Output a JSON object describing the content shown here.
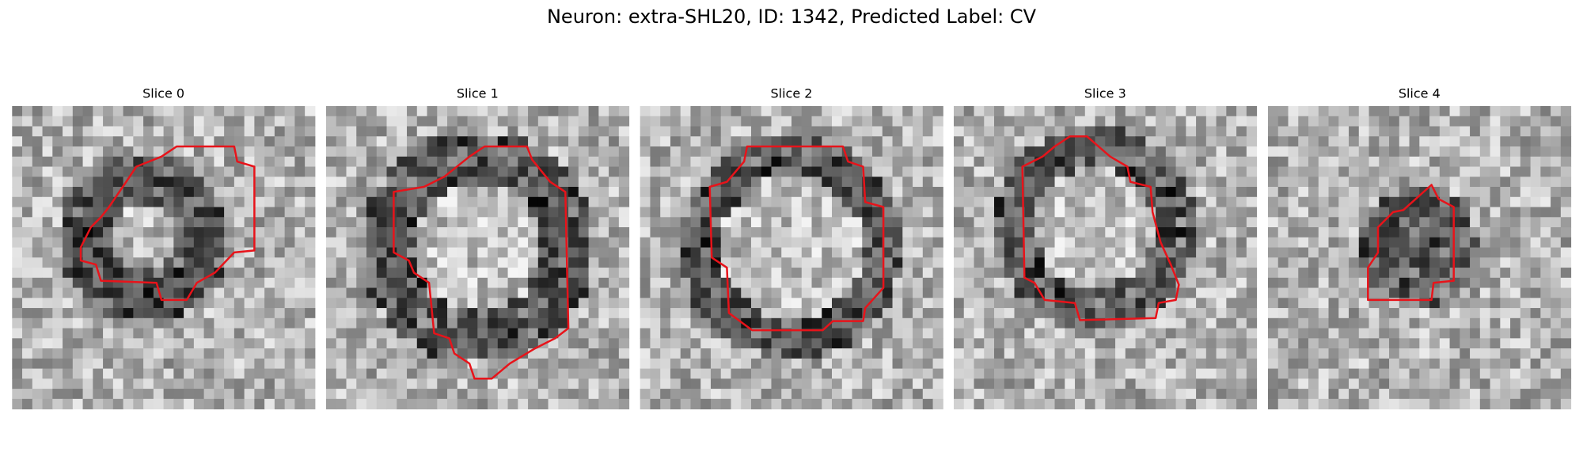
{
  "title": "Neuron: extra-SHL20, ID: 1342, Predicted Label: CV",
  "panels": [
    {
      "title": "Slice 0"
    },
    {
      "title": "Slice 1"
    },
    {
      "title": "Slice 2"
    },
    {
      "title": "Slice 3"
    },
    {
      "title": "Slice 4"
    }
  ]
}
